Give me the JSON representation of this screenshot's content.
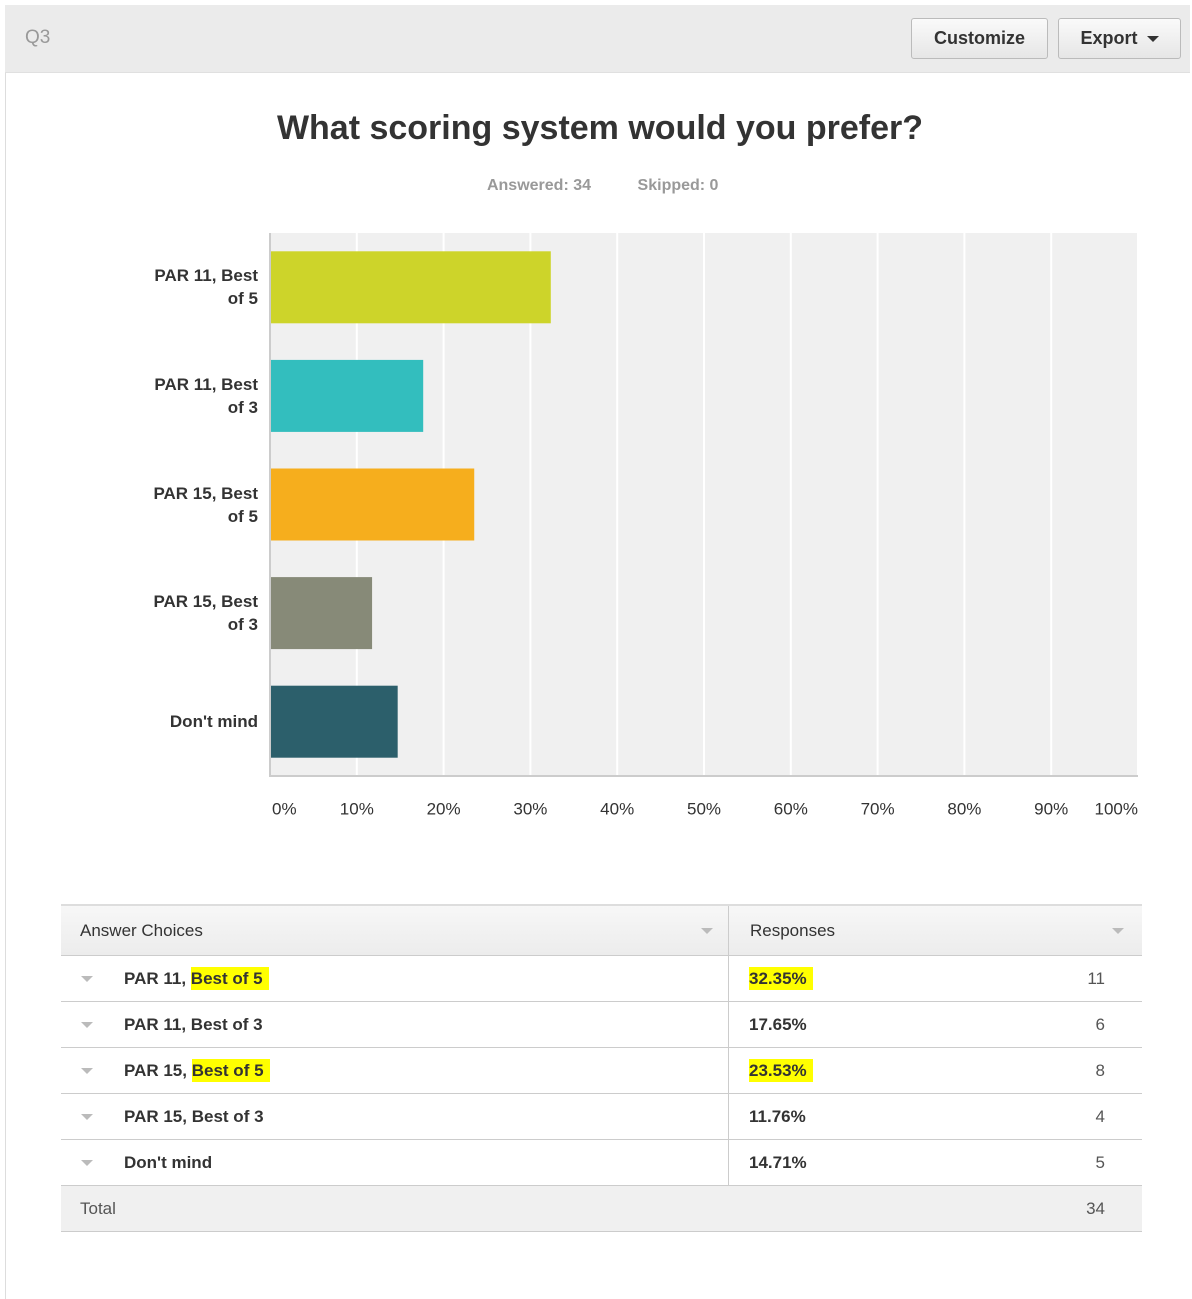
{
  "header": {
    "question": "Q3",
    "buttons": [
      "Customize",
      "Export"
    ]
  },
  "chart_data": {
    "type": "bar",
    "orientation": "horizontal",
    "title": "What scoring system would you prefer?",
    "subtitle": [
      "Answered: 34",
      "Skipped: 0"
    ],
    "categories": [
      "PAR 11, Best of 5",
      "PAR 11, Best of 3",
      "PAR 15, Best of 5",
      "PAR 15, Best of 3",
      "Don't mind"
    ],
    "values": [
      32.35,
      17.65,
      23.53,
      11.76,
      14.71
    ],
    "colors": [
      "#cdd42a",
      "#33bebe",
      "#f6ae1d",
      "#878a78",
      "#2c5f6b"
    ],
    "xlim": [
      0,
      100
    ],
    "xticks": [
      {
        "value": 0,
        "label": "0%"
      },
      {
        "value": 10,
        "label": "10%"
      },
      {
        "value": 20,
        "label": "20%"
      },
      {
        "value": 30,
        "label": "30%"
      },
      {
        "value": 40,
        "label": "40%"
      },
      {
        "value": 50,
        "label": "50%"
      },
      {
        "value": 60,
        "label": "60%"
      },
      {
        "value": 70,
        "label": "70%"
      },
      {
        "value": 80,
        "label": "80%"
      },
      {
        "value": 90,
        "label": "90%"
      },
      {
        "value": 100,
        "label": "100%"
      }
    ],
    "grid": true
  },
  "table": {
    "headers": [
      "Answer Choices",
      "Responses"
    ],
    "rows": [
      {
        "prefix": "PAR 11,",
        "suffix": "Best of 5",
        "percent": "32.35%",
        "count": 11,
        "highlighted": true
      },
      {
        "prefix": "PAR 11,",
        "suffix": "Best of 3",
        "percent": "17.65%",
        "count": 6,
        "highlighted": false
      },
      {
        "prefix": "PAR 15,",
        "suffix": "Best of 5",
        "percent": "23.53%",
        "count": 8,
        "highlighted": true
      },
      {
        "prefix": "PAR 15,",
        "suffix": "Best of 3",
        "percent": "11.76%",
        "count": 4,
        "highlighted": false
      },
      {
        "prefix": "Don't mind",
        "suffix": null,
        "percent": "14.71%",
        "count": 5,
        "highlighted": false
      }
    ],
    "total": {
      "label": "Total",
      "count": 34
    }
  }
}
